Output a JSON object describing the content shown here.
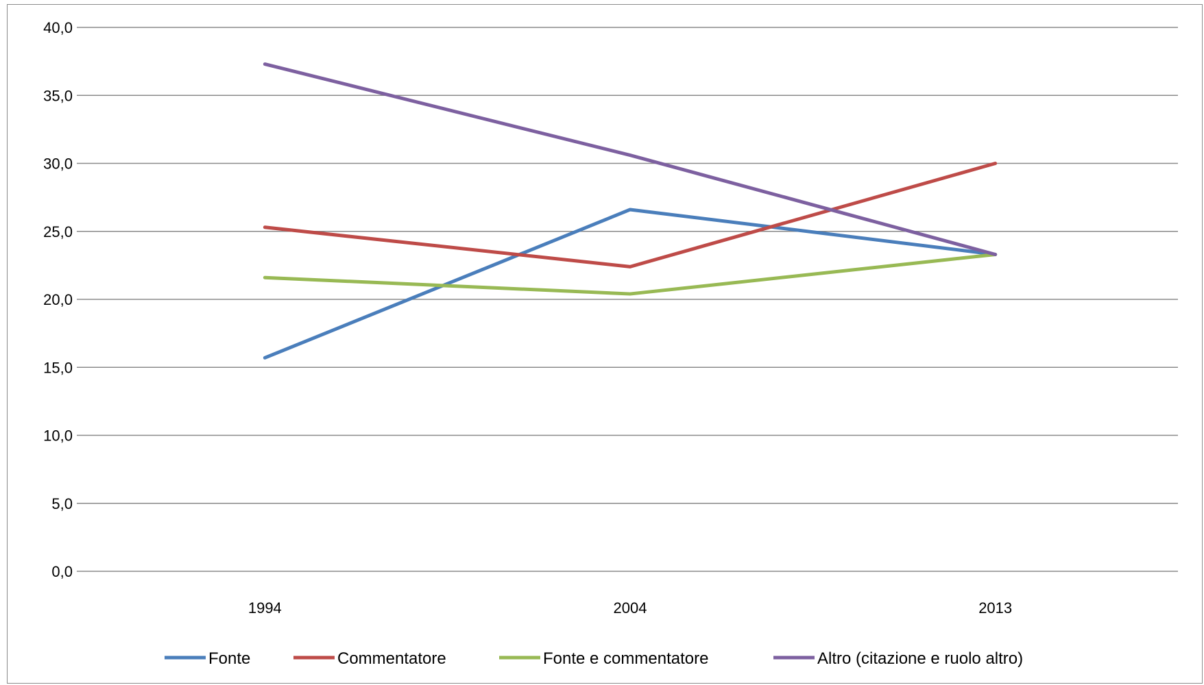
{
  "chart_data": {
    "type": "line",
    "title": "",
    "xlabel": "",
    "ylabel": "",
    "categories": [
      "1994",
      "2004",
      "2013"
    ],
    "ylim": [
      0,
      40
    ],
    "y_ticks": [
      "0,0",
      "5,0",
      "10,0",
      "15,0",
      "20,0",
      "25,0",
      "30,0",
      "35,0",
      "40,0"
    ],
    "grid": true,
    "legend_position": "bottom",
    "series": [
      {
        "name": "Fonte",
        "color": "#4a7ebb",
        "values": [
          15.7,
          26.6,
          23.3
        ]
      },
      {
        "name": "Commentatore",
        "color": "#be4b48",
        "values": [
          25.3,
          22.4,
          30.0
        ]
      },
      {
        "name": "Fonte e commentatore",
        "color": "#98b954",
        "values": [
          21.6,
          20.4,
          23.3
        ]
      },
      {
        "name": "Altro (citazione e ruolo altro)",
        "color": "#7d60a0",
        "values": [
          37.3,
          30.6,
          23.3
        ]
      }
    ]
  }
}
